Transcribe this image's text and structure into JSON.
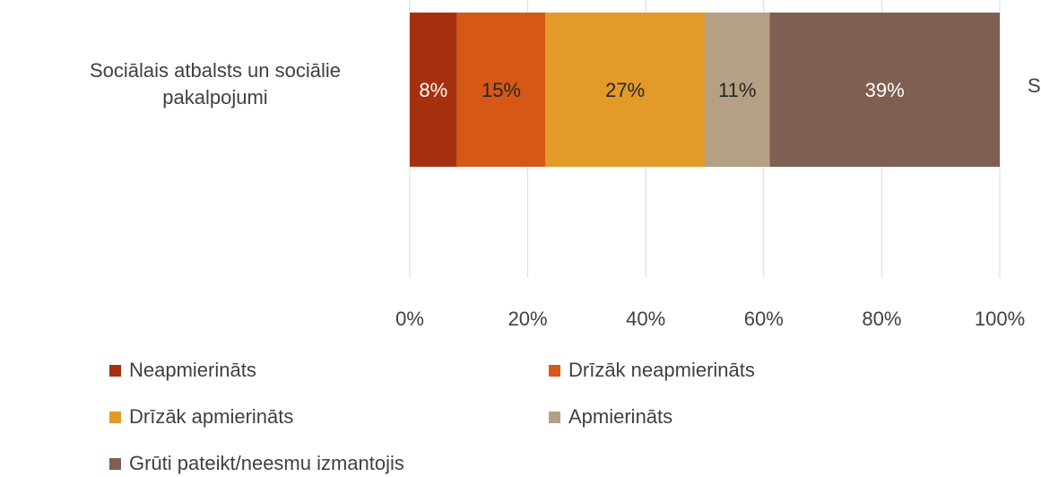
{
  "chart_data": {
    "type": "stacked-barh",
    "categories": [
      "Sociālais atbalsts un sociālie pakalpojumi"
    ],
    "series": [
      {
        "name": "Neapmierināts",
        "color": "#A5300F",
        "values": [
          8
        ],
        "value_labels": [
          "8%"
        ]
      },
      {
        "name": "Drīzāk neapmierināts",
        "color": "#D55816",
        "values": [
          15
        ],
        "value_labels": [
          "15%"
        ]
      },
      {
        "name": "Drīzāk apmierināts",
        "color": "#E39A29",
        "values": [
          27
        ],
        "value_labels": [
          "27%"
        ]
      },
      {
        "name": "Apmierināts",
        "color": "#B4A084",
        "values": [
          11
        ],
        "value_labels": [
          "11%"
        ]
      },
      {
        "name": "Grūti pateikt/neesmu izmantojis",
        "color": "#7F5F52",
        "values": [
          39
        ],
        "value_labels": [
          "39%"
        ]
      }
    ],
    "xlim": [
      0,
      100
    ],
    "xticks": [
      {
        "value": 0,
        "label": "0%"
      },
      {
        "value": 20,
        "label": "20%"
      },
      {
        "value": 40,
        "label": "40%"
      },
      {
        "value": 60,
        "label": "60%"
      },
      {
        "value": 80,
        "label": "80%"
      },
      {
        "value": 100,
        "label": "100%"
      }
    ],
    "grid": true,
    "legend": "bottom",
    "annotations": [
      "S"
    ]
  }
}
